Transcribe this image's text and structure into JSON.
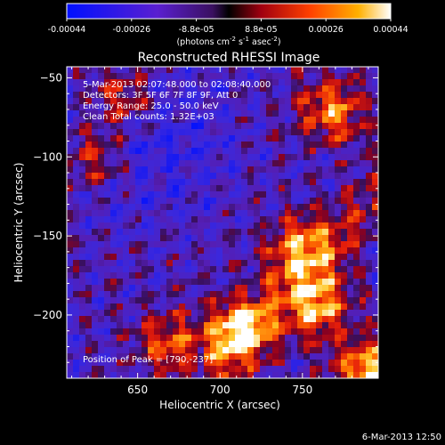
{
  "colorbar": {
    "tick_labels": [
      "-0.00044",
      "-0.00026",
      "-8.8e-05",
      "8.8e-05",
      "0.00026",
      "0.00044"
    ],
    "range": [
      -0.00044,
      0.00044
    ],
    "units_line": "(photons cm",
    "units_sup1": "-2",
    "units_mid": " s",
    "units_sup2": "-1",
    "units_mid2": " asec",
    "units_sup3": "-2",
    "units_end": ")"
  },
  "chart_data": {
    "type": "heatmap",
    "title": "Reconstructed RHESSI Image",
    "xlabel": "Heliocentric X (arcsec)",
    "ylabel": "Heliocentric Y (arcsec)",
    "xlim": [
      607,
      796
    ],
    "ylim": [
      -240,
      -43
    ],
    "x_ticks": [
      650,
      700,
      750
    ],
    "y_ticks": [
      -50,
      -100,
      -150,
      -200
    ],
    "annotations": {
      "time_range": "5-Mar-2013 02:07:48.000 to 02:08:40.000",
      "detectors": "Detectors: 3F 5F 6F 7F 8F 9F, Att 0",
      "energy": "Energy Range: 25.0 - 50.0 keV",
      "method": "Clean     Total counts: 1.32E+03",
      "peak": "Position of Peak = [790,-237]"
    },
    "peak": [
      790,
      -237
    ],
    "bright_regions": [
      {
        "x": 790,
        "y": -237,
        "intensity": 1.0
      },
      {
        "x": 760,
        "y": -195,
        "intensity": 0.8
      },
      {
        "x": 712,
        "y": -210,
        "intensity": 0.85
      },
      {
        "x": 670,
        "y": -218,
        "intensity": 0.6
      },
      {
        "x": 748,
        "y": -158,
        "intensity": 0.7
      },
      {
        "x": 768,
        "y": -70,
        "intensity": 0.75
      },
      {
        "x": 640,
        "y": -62,
        "intensity": 0.55
      },
      {
        "x": 625,
        "y": -100,
        "intensity": 0.5
      }
    ]
  },
  "footer": {
    "timestamp": "6-Mar-2013 12:50"
  },
  "colors": {
    "background": "#000000",
    "axis": "#ffffff"
  }
}
